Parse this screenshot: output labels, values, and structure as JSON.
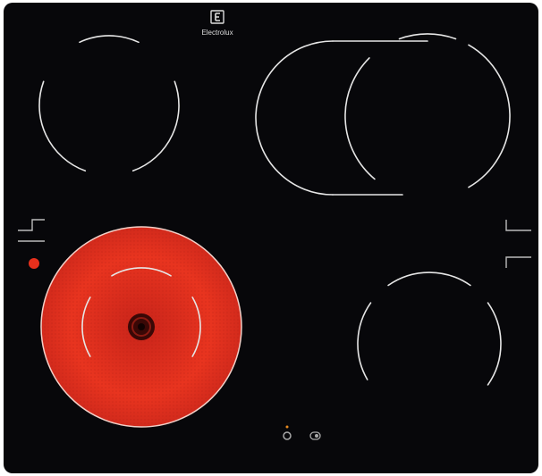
{
  "brand": {
    "name": "Electrolux"
  }
}
